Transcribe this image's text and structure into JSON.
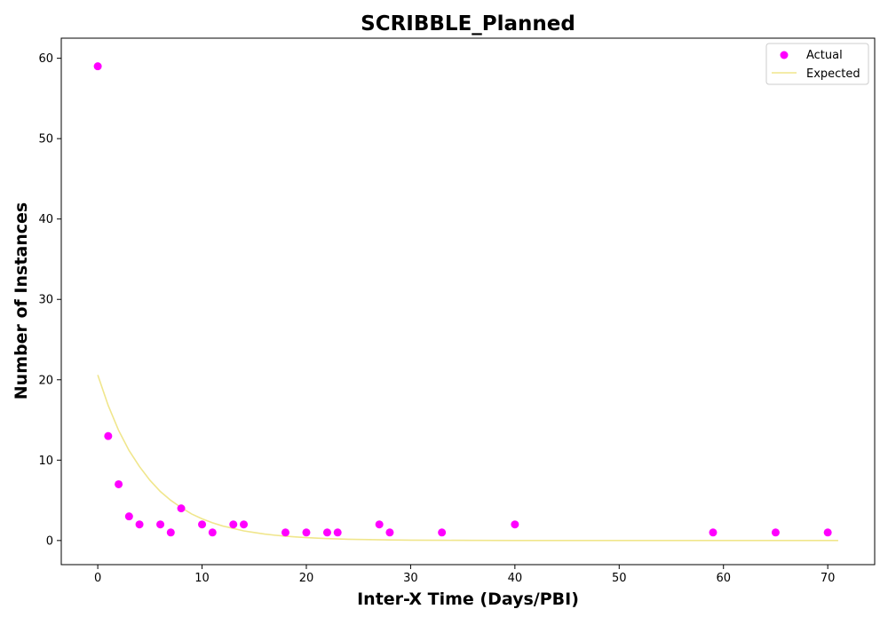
{
  "chart_data": {
    "type": "scatter",
    "title": "SCRIBBLE_Planned",
    "xlabel": "Inter-X Time (Days/PBI)",
    "ylabel": "Number of Instances",
    "xlim": [
      -3.5,
      74.5
    ],
    "ylim": [
      -3,
      62.5
    ],
    "xticks": [
      0,
      10,
      20,
      30,
      40,
      50,
      60,
      70
    ],
    "yticks": [
      0,
      10,
      20,
      30,
      40,
      50,
      60
    ],
    "grid": false,
    "legend_position": "top-right",
    "series": [
      {
        "name": "Actual",
        "kind": "scatter",
        "color": "#ff00ff",
        "x": [
          0,
          1,
          2,
          3,
          4,
          6,
          7,
          8,
          10,
          11,
          13,
          14,
          18,
          20,
          22,
          23,
          27,
          28,
          33,
          40,
          59,
          65,
          70
        ],
        "y": [
          59,
          13,
          7,
          3,
          2,
          2,
          1,
          4,
          2,
          1,
          2,
          2,
          1,
          1,
          1,
          1,
          2,
          1,
          1,
          2,
          1,
          1,
          1
        ]
      },
      {
        "name": "Expected",
        "kind": "line",
        "color": "#f0e68c",
        "x": [
          0,
          1,
          2,
          3,
          4,
          5,
          6,
          7,
          8,
          9,
          10,
          11,
          12,
          13,
          14,
          15,
          16,
          17,
          18,
          19,
          20,
          22,
          24,
          26,
          28,
          30,
          33,
          36,
          40,
          45,
          50,
          55,
          60,
          65,
          71
        ],
        "y": [
          20.6,
          16.8,
          13.7,
          11.2,
          9.2,
          7.5,
          6.1,
          5.0,
          4.1,
          3.3,
          2.7,
          2.2,
          1.8,
          1.5,
          1.2,
          1.0,
          0.8,
          0.66,
          0.54,
          0.44,
          0.36,
          0.24,
          0.16,
          0.11,
          0.07,
          0.05,
          0.03,
          0.014,
          0.006,
          0.002,
          0.0006,
          0.0002,
          0.0001,
          0.0,
          0.0
        ]
      }
    ]
  }
}
